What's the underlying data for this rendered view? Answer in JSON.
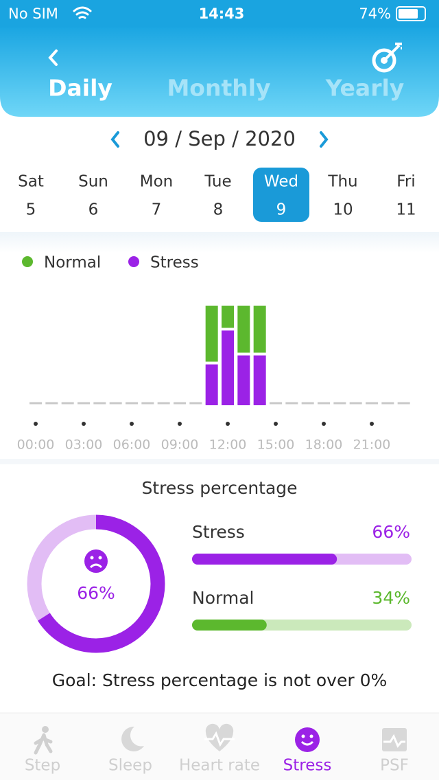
{
  "status_bar": {
    "carrier": "No SIM",
    "time": "14:43",
    "battery": "74%"
  },
  "tabs": [
    "Daily",
    "Monthly",
    "Yearly"
  ],
  "date": {
    "day": "09",
    "month": "Sep",
    "year": "2020",
    "separator": "/"
  },
  "week": [
    {
      "name": "Sat",
      "day": "5"
    },
    {
      "name": "Sun",
      "day": "6"
    },
    {
      "name": "Mon",
      "day": "7"
    },
    {
      "name": "Tue",
      "day": "8"
    },
    {
      "name": "Wed",
      "day": "9",
      "selected": true
    },
    {
      "name": "Thu",
      "day": "10"
    },
    {
      "name": "Fri",
      "day": "11"
    }
  ],
  "legend": [
    {
      "name": "Normal",
      "color": "#5cb82e"
    },
    {
      "name": "Stress",
      "color": "#9b22e6"
    }
  ],
  "chart": {
    "hours": 24,
    "max": 100,
    "bars": [
      {
        "hour": 11,
        "stress": 41,
        "normal": 59
      },
      {
        "hour": 12,
        "stress": 75,
        "normal": 25
      },
      {
        "hour": 13,
        "stress": 50,
        "normal": 50
      },
      {
        "hour": 14,
        "stress": 50,
        "normal": 50
      }
    ],
    "time_labels": [
      "00:00",
      "03:00",
      "06:00",
      "09:00",
      "12:00",
      "15:00",
      "18:00",
      "21:00"
    ]
  },
  "summary": {
    "title": "Stress percentage",
    "ring": {
      "value": 66,
      "label": "66%"
    },
    "items": [
      {
        "name": "Stress",
        "value": 66,
        "label": "66%",
        "color": "#9b22e6",
        "track": "#e2bdf5"
      },
      {
        "name": "Normal",
        "value": 34,
        "label": "34%",
        "color": "#5cb82e",
        "track": "#cbe9bb"
      }
    ],
    "goal": "Goal: Stress percentage is not over 0%"
  },
  "nav": [
    "Step",
    "Sleep",
    "Heart rate",
    "Stress",
    "PSF"
  ]
}
